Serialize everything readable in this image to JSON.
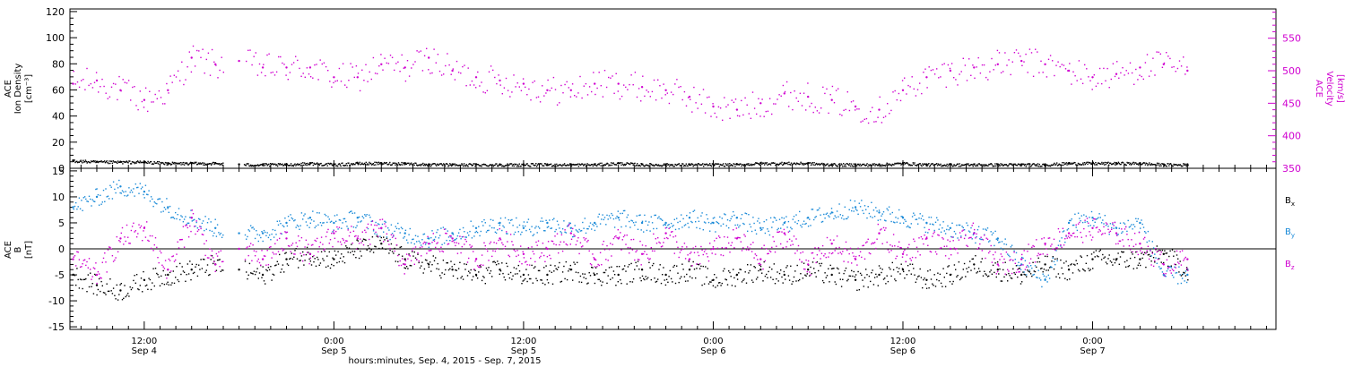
{
  "figure": {
    "x_title": "hours:minutes, Sep.  4, 2015 - Sep.  7, 2015",
    "x_ticks": [
      {
        "time": "12:00",
        "date": "Sep 4",
        "hours": 12
      },
      {
        "time": "0:00",
        "date": "Sep 5",
        "hours": 24
      },
      {
        "time": "12:00",
        "date": "Sep 5",
        "hours": 36
      },
      {
        "time": "0:00",
        "date": "Sep 6",
        "hours": 48
      },
      {
        "time": "12:00",
        "date": "Sep 6",
        "hours": 60
      },
      {
        "time": "0:00",
        "date": "Sep 7",
        "hours": 72
      }
    ]
  },
  "chart_data": [
    {
      "type": "scatter",
      "panel": "top",
      "xlim_hours": [
        7.3,
        83.6
      ],
      "x_unit_note": "hours from Sep 4 0:00",
      "left_axis": {
        "label": [
          "ACE",
          "Ion Density",
          "[cm⁻³]"
        ],
        "ylim": [
          0,
          122
        ],
        "ticks": [
          0,
          20,
          40,
          60,
          80,
          100,
          120
        ]
      },
      "right_axis": {
        "label": [
          "ACE",
          "Velocity",
          "[km/s]"
        ],
        "ylim": [
          350,
          595
        ],
        "ticks": [
          350,
          400,
          450,
          500,
          550
        ],
        "color": "#d000d0"
      },
      "series": [
        {
          "axis": "left",
          "color": "#000000",
          "x": [
            7.5,
            9,
            10.5,
            12,
            13.5,
            15,
            16.5,
            18,
            19.5,
            21,
            22.5,
            24,
            25.5,
            27,
            28.5,
            30,
            31.5,
            33,
            34.5,
            36,
            37.5,
            39,
            40.5,
            42,
            43.5,
            45,
            46.5,
            48,
            49.5,
            51,
            52.5,
            54,
            55.5,
            57,
            58.5,
            60,
            61.5,
            63,
            64.5,
            66,
            67.5,
            69,
            70.5,
            72,
            73.5,
            75,
            76.5,
            78
          ],
          "y": [
            6,
            5,
            5,
            5,
            4,
            4,
            4,
            3,
            3,
            3,
            4,
            3,
            4,
            4,
            4,
            3,
            3,
            3,
            3,
            3,
            3,
            3,
            3,
            4,
            3,
            3,
            3,
            3,
            3,
            4,
            4,
            4,
            3,
            3,
            3,
            4,
            3,
            3,
            3,
            3,
            3,
            3,
            4,
            4,
            4,
            4,
            3,
            3
          ]
        },
        {
          "axis": "right",
          "color": "#d000d0",
          "x": [
            7.5,
            9,
            10.5,
            12,
            13.5,
            15,
            16.5,
            18,
            19.5,
            21,
            22.5,
            24,
            25.5,
            27,
            28.5,
            30,
            31.5,
            33,
            34.5,
            36,
            37.5,
            39,
            40.5,
            42,
            43.5,
            45,
            46.5,
            48,
            49.5,
            51,
            52.5,
            54,
            55.5,
            57,
            58.5,
            60,
            61.5,
            63,
            64.5,
            66,
            67.5,
            69,
            70.5,
            72,
            73.5,
            75,
            76.5,
            78
          ],
          "y": [
            480,
            485,
            470,
            455,
            470,
            520,
            510,
            515,
            505,
            505,
            505,
            490,
            490,
            510,
            505,
            520,
            500,
            490,
            485,
            480,
            470,
            470,
            480,
            480,
            475,
            470,
            460,
            445,
            440,
            450,
            465,
            460,
            455,
            445,
            440,
            470,
            490,
            500,
            505,
            510,
            515,
            510,
            500,
            490,
            495,
            505,
            510,
            500
          ]
        }
      ]
    },
    {
      "type": "scatter",
      "panel": "bottom",
      "xlim_hours": [
        7.3,
        83.6
      ],
      "x_unit_note": "hours from Sep 4 0:00",
      "ylabel": [
        "ACE",
        "B",
        "[nT]"
      ],
      "ylim": [
        -15.5,
        15.5
      ],
      "ticks": [
        -15,
        -10,
        -5,
        0,
        5,
        10,
        15
      ],
      "zero_line": true,
      "series": [
        {
          "name": "Bx",
          "label_main": "B",
          "label_sub": "x",
          "color": "#000000",
          "x": [
            7.5,
            9,
            10.5,
            12,
            13.5,
            15,
            16.5,
            18,
            19.5,
            21,
            22.5,
            24,
            25.5,
            27,
            28.5,
            30,
            31.5,
            33,
            34.5,
            36,
            37.5,
            39,
            40.5,
            42,
            43.5,
            45,
            46.5,
            48,
            49.5,
            51,
            52.5,
            54,
            55.5,
            57,
            58.5,
            60,
            61.5,
            63,
            64.5,
            66,
            67.5,
            69,
            70.5,
            72,
            73.5,
            75,
            76.5,
            78
          ],
          "y": [
            -5,
            -7,
            -8,
            -6,
            -5,
            -4,
            -3,
            -4,
            -5,
            -2,
            -1,
            -2,
            0,
            1,
            -2,
            -3,
            -4,
            -5,
            -4,
            -5,
            -5,
            -4,
            -5,
            -5,
            -4,
            -5,
            -4,
            -6,
            -5,
            -4,
            -5,
            -4,
            -5,
            -6,
            -5,
            -4,
            -6,
            -5,
            -3,
            -4,
            -5,
            -3,
            -4,
            -2,
            -2,
            -2,
            -1,
            -4
          ]
        },
        {
          "name": "By",
          "label_main": "B",
          "label_sub": "y",
          "color": "#1a8ad8",
          "x": [
            7.5,
            9,
            10.5,
            12,
            13.5,
            15,
            16.5,
            18,
            19.5,
            21,
            22.5,
            24,
            25.5,
            27,
            28.5,
            30,
            31.5,
            33,
            34.5,
            36,
            37.5,
            39,
            40.5,
            42,
            43.5,
            45,
            46.5,
            48,
            49.5,
            51,
            52.5,
            54,
            55.5,
            57,
            58.5,
            60,
            61.5,
            63,
            64.5,
            66,
            67.5,
            69,
            70.5,
            72,
            73.5,
            75,
            76.5,
            78
          ],
          "y": [
            8,
            10,
            12,
            11,
            8,
            6,
            4,
            3,
            3,
            5,
            6,
            5,
            6,
            4,
            3,
            2,
            3,
            4,
            5,
            4,
            5,
            4,
            5,
            6,
            5,
            5,
            6,
            5,
            6,
            4,
            5,
            6,
            7,
            8,
            7,
            6,
            5,
            4,
            3,
            2,
            -3,
            -6,
            5,
            6,
            4,
            5,
            -5,
            -5
          ]
        },
        {
          "name": "Bz",
          "label_main": "B",
          "label_sub": "z",
          "color": "#d000d0",
          "x": [
            7.5,
            9,
            10.5,
            12,
            13.5,
            15,
            16.5,
            18,
            19.5,
            21,
            22.5,
            24,
            25.5,
            27,
            28.5,
            30,
            31.5,
            33,
            34.5,
            36,
            37.5,
            39,
            40.5,
            42,
            43.5,
            45,
            46.5,
            48,
            49.5,
            51,
            52.5,
            54,
            55.5,
            57,
            58.5,
            60,
            61.5,
            63,
            64.5,
            66,
            67.5,
            69,
            70.5,
            72,
            73.5,
            75,
            76.5,
            78
          ],
          "y": [
            -2,
            -5,
            2,
            4,
            -4,
            6,
            -3,
            0,
            -2,
            2,
            -1,
            3,
            2,
            4,
            -3,
            1,
            2,
            -2,
            2,
            -1,
            0,
            3,
            -2,
            2,
            -1,
            3,
            -2,
            0,
            2,
            -2,
            3,
            -3,
            1,
            -2,
            3,
            -1,
            2,
            0,
            3,
            -3,
            -2,
            1,
            3,
            4,
            3,
            1,
            -3,
            -2
          ]
        }
      ]
    }
  ]
}
